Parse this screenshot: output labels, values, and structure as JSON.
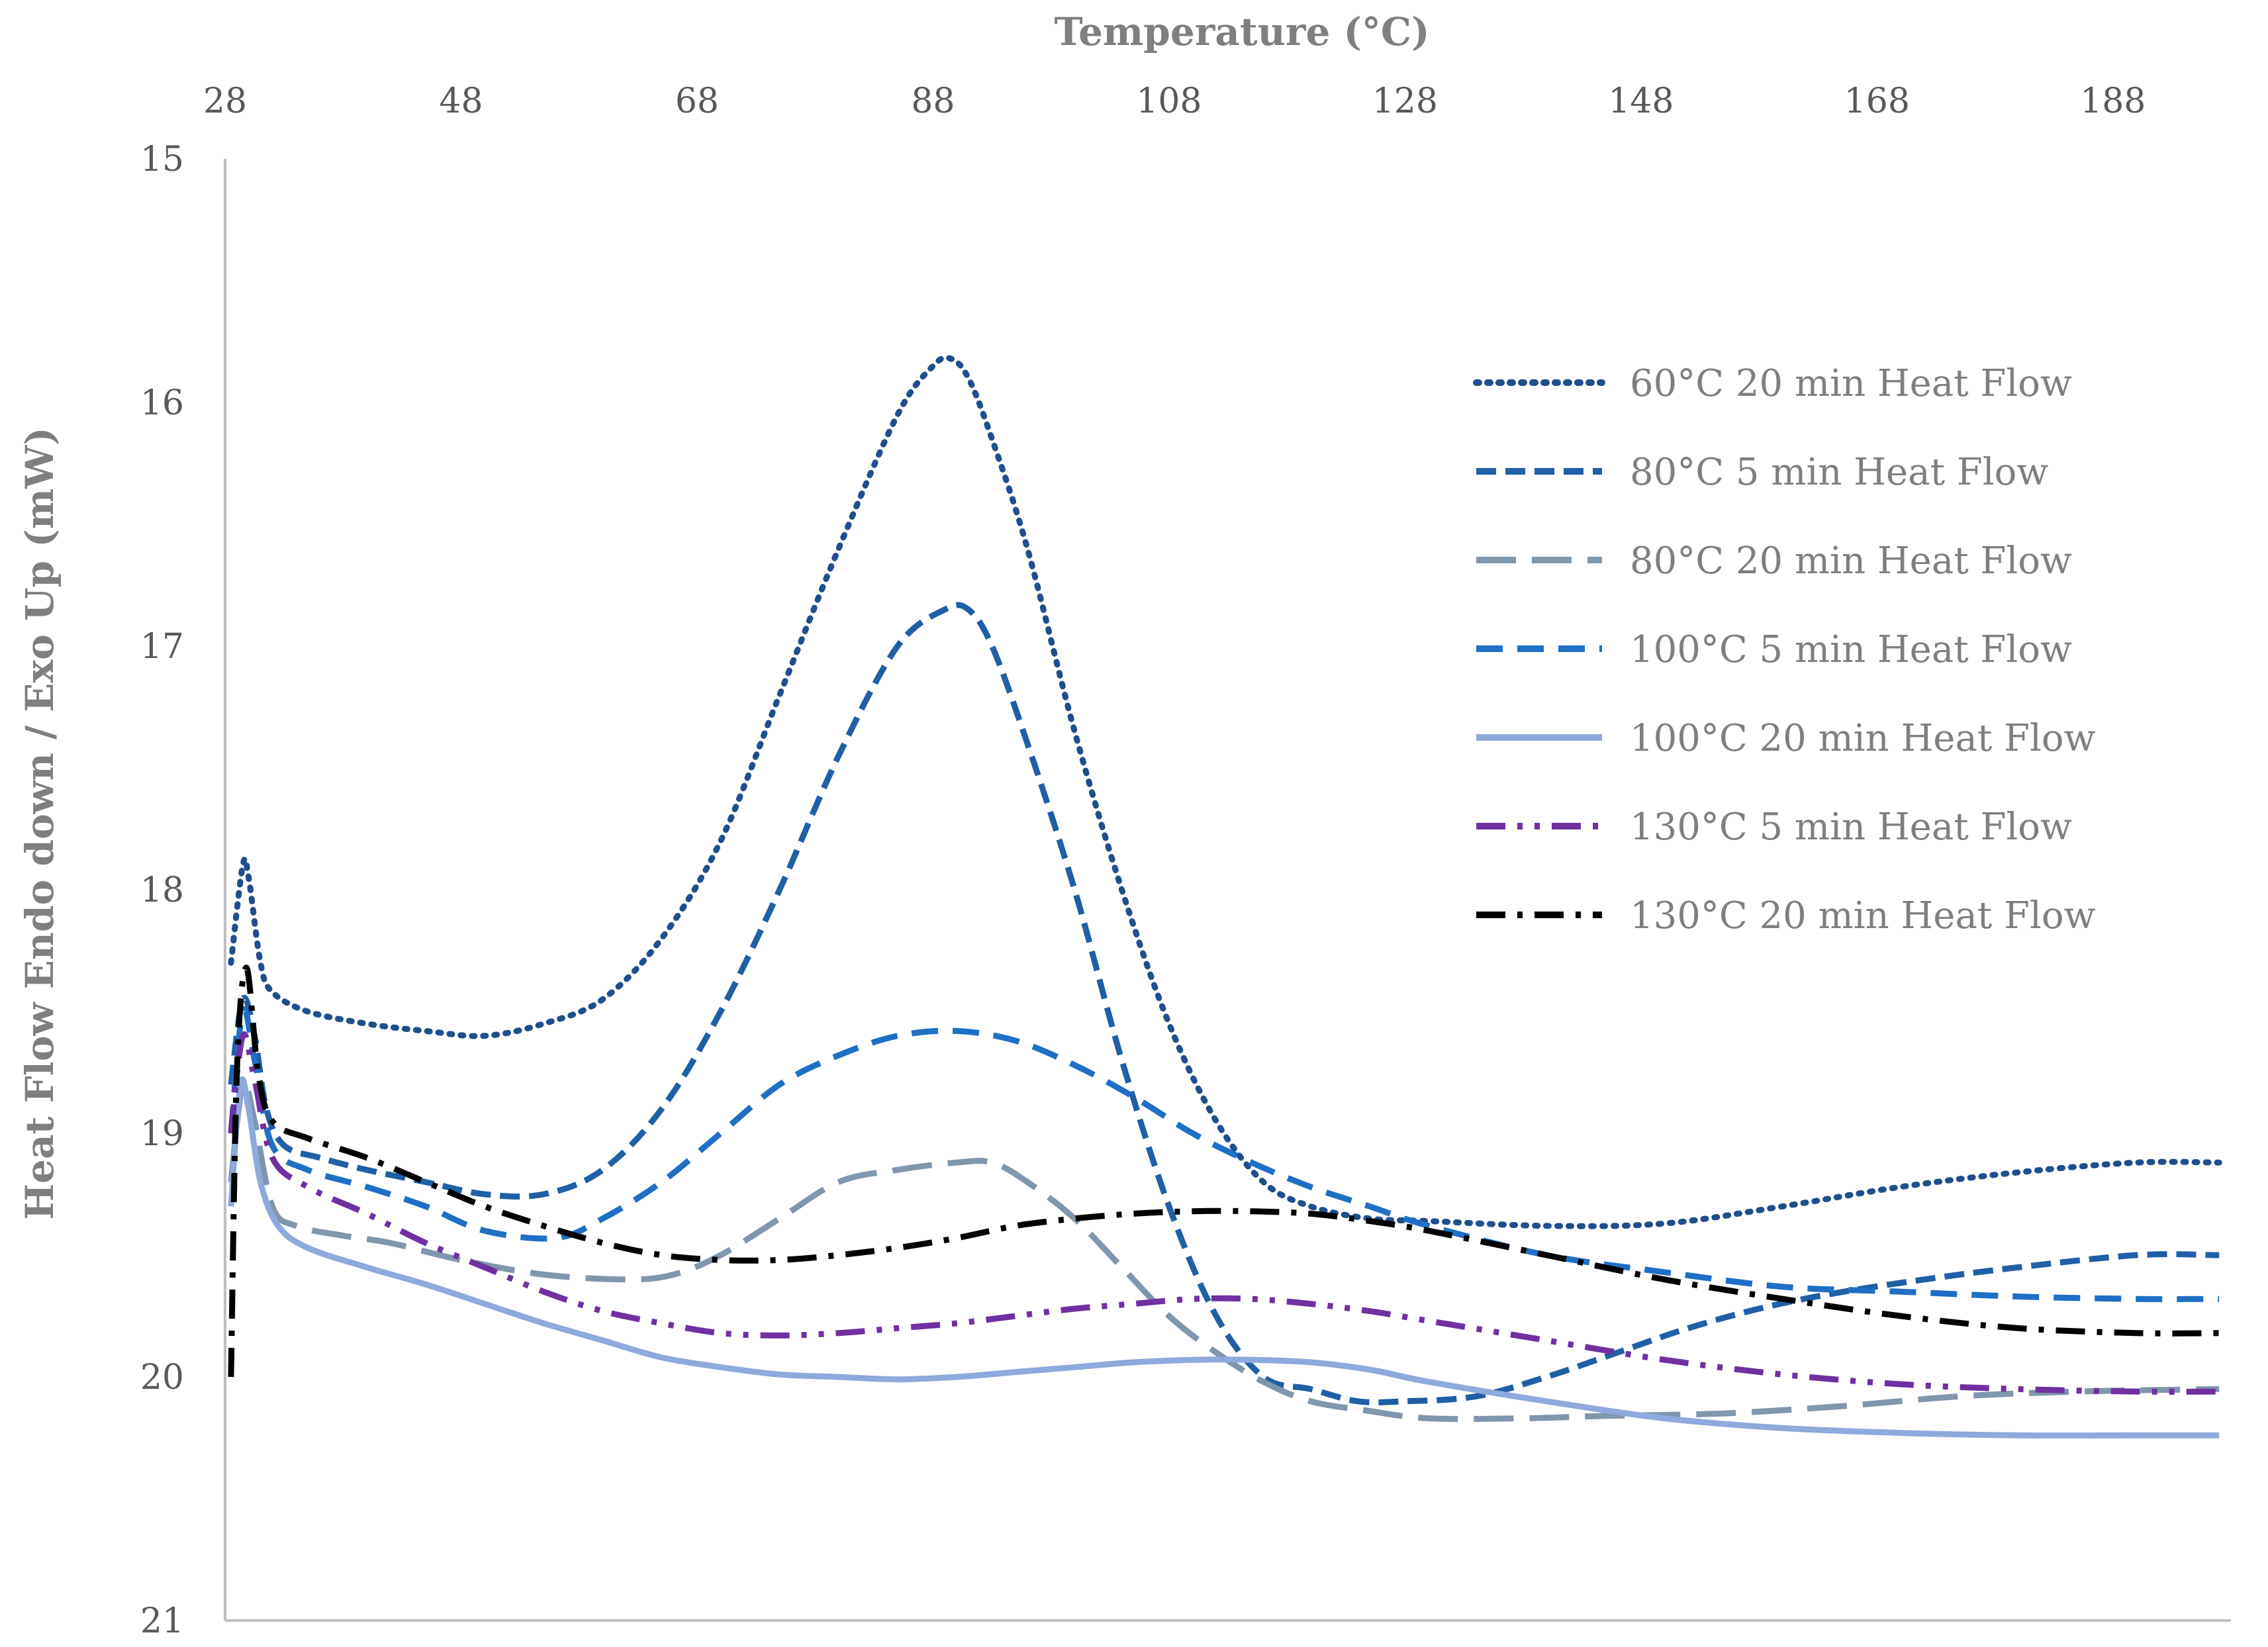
{
  "chart_data": {
    "type": "line",
    "title": "",
    "xlabel": "Temperature (°C)",
    "ylabel": "Heat Flow Endo down / Exo Up  (mW)",
    "xlim": [
      28,
      198
    ],
    "ylim": [
      15,
      21
    ],
    "y_inverted": true,
    "x_axis_position": "top",
    "x_ticks": [
      28,
      48,
      68,
      88,
      108,
      128,
      148,
      168,
      188
    ],
    "y_ticks": [
      15,
      16,
      17,
      18,
      19,
      20,
      21
    ],
    "grid": false,
    "legend_position": "top-right",
    "series": [
      {
        "name": "60°C 20 min Heat Flow",
        "color": "#1f4e8c",
        "dash": "dot",
        "points": [
          [
            28.5,
            18.3
          ],
          [
            29.5,
            17.9
          ],
          [
            30,
            17.95
          ],
          [
            31,
            18.3
          ],
          [
            32,
            18.42
          ],
          [
            35,
            18.5
          ],
          [
            40,
            18.55
          ],
          [
            45,
            18.58
          ],
          [
            50,
            18.6
          ],
          [
            55,
            18.55
          ],
          [
            60,
            18.45
          ],
          [
            65,
            18.2
          ],
          [
            70,
            17.8
          ],
          [
            75,
            17.2
          ],
          [
            80,
            16.6
          ],
          [
            85,
            16.05
          ],
          [
            88,
            15.85
          ],
          [
            89.5,
            15.82
          ],
          [
            91,
            15.9
          ],
          [
            93,
            16.15
          ],
          [
            96,
            16.6
          ],
          [
            100,
            17.35
          ],
          [
            104,
            18.0
          ],
          [
            108,
            18.55
          ],
          [
            112,
            18.95
          ],
          [
            116,
            19.2
          ],
          [
            120,
            19.3
          ],
          [
            125,
            19.35
          ],
          [
            130,
            19.36
          ],
          [
            140,
            19.38
          ],
          [
            150,
            19.37
          ],
          [
            160,
            19.3
          ],
          [
            170,
            19.22
          ],
          [
            180,
            19.16
          ],
          [
            190,
            19.12
          ],
          [
            197,
            19.12
          ]
        ]
      },
      {
        "name": "80°C 5 min Heat Flow",
        "color": "#1f5fa6",
        "dash": "dash",
        "points": [
          [
            28.5,
            18.8
          ],
          [
            29.5,
            18.45
          ],
          [
            30.5,
            18.6
          ],
          [
            31.5,
            18.9
          ],
          [
            33,
            19.05
          ],
          [
            36,
            19.1
          ],
          [
            40,
            19.15
          ],
          [
            45,
            19.2
          ],
          [
            50,
            19.25
          ],
          [
            55,
            19.25
          ],
          [
            60,
            19.15
          ],
          [
            65,
            18.9
          ],
          [
            70,
            18.5
          ],
          [
            75,
            18.0
          ],
          [
            80,
            17.45
          ],
          [
            85,
            17.0
          ],
          [
            89,
            16.85
          ],
          [
            91,
            16.85
          ],
          [
            93,
            17.0
          ],
          [
            96,
            17.4
          ],
          [
            100,
            18.0
          ],
          [
            104,
            18.7
          ],
          [
            108,
            19.3
          ],
          [
            112,
            19.75
          ],
          [
            116,
            20.0
          ],
          [
            120,
            20.05
          ],
          [
            124,
            20.1
          ],
          [
            128,
            20.1
          ],
          [
            134,
            20.08
          ],
          [
            140,
            20.0
          ],
          [
            146,
            19.9
          ],
          [
            152,
            19.8
          ],
          [
            158,
            19.72
          ],
          [
            164,
            19.66
          ],
          [
            172,
            19.6
          ],
          [
            180,
            19.55
          ],
          [
            190,
            19.5
          ],
          [
            197,
            19.5
          ]
        ]
      },
      {
        "name": "80°C 20 min Heat Flow",
        "color": "#7f96ad",
        "dash": "longdash",
        "points": [
          [
            28.5,
            19.2
          ],
          [
            29.5,
            18.8
          ],
          [
            30.5,
            18.95
          ],
          [
            32,
            19.3
          ],
          [
            34,
            19.38
          ],
          [
            38,
            19.42
          ],
          [
            42,
            19.45
          ],
          [
            48,
            19.52
          ],
          [
            55,
            19.58
          ],
          [
            62,
            19.6
          ],
          [
            66,
            19.58
          ],
          [
            70,
            19.5
          ],
          [
            75,
            19.35
          ],
          [
            80,
            19.2
          ],
          [
            85,
            19.15
          ],
          [
            90,
            19.12
          ],
          [
            93,
            19.12
          ],
          [
            96,
            19.2
          ],
          [
            100,
            19.35
          ],
          [
            104,
            19.55
          ],
          [
            108,
            19.75
          ],
          [
            112,
            19.9
          ],
          [
            116,
            20.02
          ],
          [
            120,
            20.1
          ],
          [
            125,
            20.14
          ],
          [
            130,
            20.17
          ],
          [
            138,
            20.17
          ],
          [
            145,
            20.16
          ],
          [
            155,
            20.15
          ],
          [
            165,
            20.12
          ],
          [
            175,
            20.08
          ],
          [
            185,
            20.06
          ],
          [
            197,
            20.05
          ]
        ]
      },
      {
        "name": "100°C 5 min Heat Flow",
        "color": "#1f6fc4",
        "dash": "mdash",
        "points": [
          [
            28.5,
            19.0
          ],
          [
            29.5,
            18.5
          ],
          [
            30.5,
            18.7
          ],
          [
            32,
            19.05
          ],
          [
            35,
            19.15
          ],
          [
            40,
            19.22
          ],
          [
            45,
            19.3
          ],
          [
            50,
            19.4
          ],
          [
            56,
            19.43
          ],
          [
            60,
            19.35
          ],
          [
            65,
            19.2
          ],
          [
            70,
            19.0
          ],
          [
            75,
            18.8
          ],
          [
            80,
            18.68
          ],
          [
            85,
            18.6
          ],
          [
            90,
            18.58
          ],
          [
            95,
            18.62
          ],
          [
            100,
            18.72
          ],
          [
            105,
            18.85
          ],
          [
            110,
            19.0
          ],
          [
            115,
            19.12
          ],
          [
            120,
            19.22
          ],
          [
            125,
            19.3
          ],
          [
            130,
            19.38
          ],
          [
            140,
            19.5
          ],
          [
            150,
            19.57
          ],
          [
            160,
            19.63
          ],
          [
            170,
            19.65
          ],
          [
            180,
            19.67
          ],
          [
            190,
            19.68
          ],
          [
            197,
            19.68
          ]
        ]
      },
      {
        "name": "100°C 20 min Heat Flow",
        "color": "#8ea9db",
        "dash": "solid",
        "points": [
          [
            28.5,
            19.3
          ],
          [
            29.3,
            18.8
          ],
          [
            30,
            18.9
          ],
          [
            31,
            19.2
          ],
          [
            32.5,
            19.38
          ],
          [
            35,
            19.47
          ],
          [
            40,
            19.55
          ],
          [
            45,
            19.62
          ],
          [
            50,
            19.7
          ],
          [
            55,
            19.78
          ],
          [
            60,
            19.85
          ],
          [
            65,
            19.92
          ],
          [
            70,
            19.96
          ],
          [
            75,
            19.99
          ],
          [
            80,
            20.0
          ],
          [
            85,
            20.01
          ],
          [
            90,
            20.0
          ],
          [
            95,
            19.98
          ],
          [
            100,
            19.96
          ],
          [
            105,
            19.94
          ],
          [
            110,
            19.93
          ],
          [
            115,
            19.93
          ],
          [
            120,
            19.94
          ],
          [
            125,
            19.97
          ],
          [
            130,
            20.02
          ],
          [
            140,
            20.1
          ],
          [
            150,
            20.17
          ],
          [
            160,
            20.21
          ],
          [
            170,
            20.23
          ],
          [
            180,
            20.24
          ],
          [
            190,
            20.24
          ],
          [
            197,
            20.24
          ]
        ]
      },
      {
        "name": "130°C 5 min Heat Flow",
        "color": "#7030a0",
        "dash": "dashdotdot",
        "points": [
          [
            28.5,
            19.0
          ],
          [
            29.5,
            18.6
          ],
          [
            30.5,
            18.78
          ],
          [
            32,
            19.1
          ],
          [
            35,
            19.22
          ],
          [
            40,
            19.33
          ],
          [
            45,
            19.45
          ],
          [
            50,
            19.55
          ],
          [
            55,
            19.65
          ],
          [
            60,
            19.73
          ],
          [
            65,
            19.78
          ],
          [
            70,
            19.82
          ],
          [
            75,
            19.83
          ],
          [
            80,
            19.82
          ],
          [
            85,
            19.8
          ],
          [
            90,
            19.78
          ],
          [
            95,
            19.75
          ],
          [
            100,
            19.72
          ],
          [
            105,
            19.7
          ],
          [
            110,
            19.68
          ],
          [
            115,
            19.68
          ],
          [
            120,
            19.7
          ],
          [
            125,
            19.73
          ],
          [
            130,
            19.77
          ],
          [
            140,
            19.85
          ],
          [
            150,
            19.93
          ],
          [
            160,
            19.99
          ],
          [
            170,
            20.03
          ],
          [
            180,
            20.05
          ],
          [
            190,
            20.06
          ],
          [
            197,
            20.06
          ]
        ]
      },
      {
        "name": "130°C 20 min Heat Flow",
        "color": "#000000",
        "dash": "dashdot",
        "points": [
          [
            28.5,
            20.0
          ],
          [
            29,
            18.75
          ],
          [
            29.8,
            18.32
          ],
          [
            30.8,
            18.75
          ],
          [
            32,
            18.95
          ],
          [
            35,
            19.02
          ],
          [
            40,
            19.1
          ],
          [
            45,
            19.2
          ],
          [
            50,
            19.3
          ],
          [
            55,
            19.38
          ],
          [
            60,
            19.45
          ],
          [
            65,
            19.5
          ],
          [
            70,
            19.52
          ],
          [
            75,
            19.52
          ],
          [
            80,
            19.5
          ],
          [
            85,
            19.47
          ],
          [
            90,
            19.43
          ],
          [
            95,
            19.38
          ],
          [
            100,
            19.35
          ],
          [
            105,
            19.33
          ],
          [
            110,
            19.32
          ],
          [
            115,
            19.32
          ],
          [
            120,
            19.33
          ],
          [
            125,
            19.36
          ],
          [
            130,
            19.4
          ],
          [
            140,
            19.5
          ],
          [
            150,
            19.6
          ],
          [
            160,
            19.68
          ],
          [
            170,
            19.75
          ],
          [
            180,
            19.8
          ],
          [
            190,
            19.82
          ],
          [
            197,
            19.82
          ]
        ]
      }
    ]
  }
}
